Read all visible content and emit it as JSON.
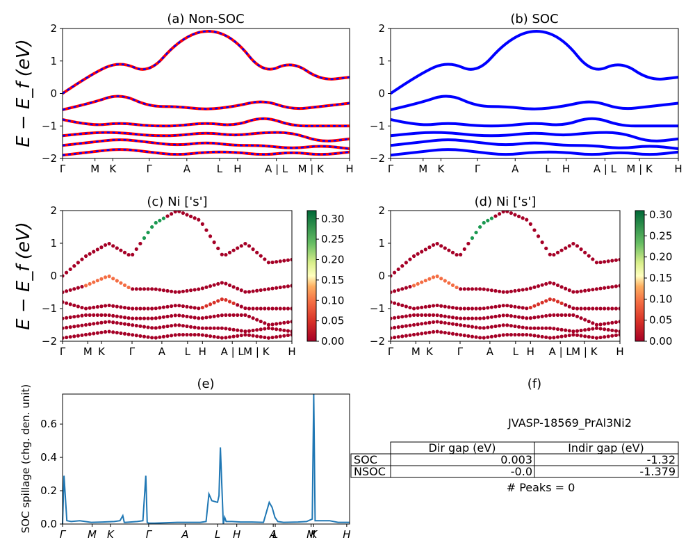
{
  "chart_data": [
    {
      "type": "line",
      "title": "(a) Non-SOC",
      "ylabel": "E − E_f (eV)",
      "ylim": [
        -2,
        2
      ],
      "yticks": [
        "−2",
        "−1",
        "0",
        "1",
        "2"
      ],
      "kpath_labels": [
        "Γ",
        "M",
        "K",
        "Γ",
        "A",
        "L",
        "H",
        "A | L",
        "M | K",
        "H"
      ],
      "series": [
        {
          "color": "#ff0000",
          "style": "solid",
          "x": [
            0,
            0.1,
            0.2,
            0.3,
            0.4,
            0.5,
            0.6,
            0.7,
            0.8,
            0.9,
            1.0
          ],
          "bands": [
            [
              0.0,
              0.6,
              1.0,
              0.6,
              1.6,
              2.0,
              1.7,
              0.6,
              1.0,
              0.4,
              0.5
            ],
            [
              -0.5,
              -0.3,
              0.0,
              -0.4,
              -0.4,
              -0.5,
              -0.4,
              -0.2,
              -0.5,
              -0.4,
              -0.3
            ],
            [
              -0.8,
              -1.0,
              -0.9,
              -1.0,
              -1.0,
              -0.9,
              -1.0,
              -0.7,
              -1.0,
              -1.0,
              -1.0
            ],
            [
              -1.3,
              -1.2,
              -1.2,
              -1.3,
              -1.3,
              -1.2,
              -1.3,
              -1.2,
              -1.2,
              -1.5,
              -1.4
            ],
            [
              -1.6,
              -1.5,
              -1.4,
              -1.5,
              -1.6,
              -1.5,
              -1.6,
              -1.6,
              -1.7,
              -1.6,
              -1.7
            ],
            [
              -1.9,
              -1.8,
              -1.7,
              -1.8,
              -1.9,
              -1.8,
              -1.8,
              -1.9,
              -1.8,
              -1.9,
              -1.8
            ]
          ]
        },
        {
          "color": "#0000ff",
          "style": "dashed",
          "note": "overlay"
        }
      ]
    },
    {
      "type": "line",
      "title": "(b) SOC",
      "ylim": [
        -2,
        2
      ],
      "yticks": [
        "−2",
        "−1",
        "0",
        "1",
        "2"
      ],
      "kpath_labels": [
        "Γ",
        "M",
        "K",
        "Γ",
        "A",
        "L",
        "H",
        "A | L",
        "M | K",
        "H"
      ],
      "series": [
        {
          "color": "#0000ff",
          "style": "solid",
          "x": [
            0,
            0.1,
            0.2,
            0.3,
            0.4,
            0.5,
            0.6,
            0.7,
            0.8,
            0.9,
            1.0
          ],
          "bands": [
            [
              0.0,
              0.6,
              1.0,
              0.6,
              1.6,
              2.0,
              1.7,
              0.6,
              1.0,
              0.4,
              0.5
            ],
            [
              -0.5,
              -0.3,
              0.0,
              -0.4,
              -0.4,
              -0.5,
              -0.4,
              -0.2,
              -0.5,
              -0.4,
              -0.3
            ],
            [
              -0.8,
              -1.0,
              -0.9,
              -1.0,
              -1.0,
              -0.9,
              -1.0,
              -0.7,
              -1.0,
              -1.0,
              -1.0
            ],
            [
              -1.3,
              -1.2,
              -1.2,
              -1.3,
              -1.3,
              -1.2,
              -1.3,
              -1.2,
              -1.2,
              -1.5,
              -1.4
            ],
            [
              -1.6,
              -1.5,
              -1.4,
              -1.5,
              -1.6,
              -1.5,
              -1.6,
              -1.6,
              -1.7,
              -1.6,
              -1.7
            ],
            [
              -1.9,
              -1.8,
              -1.7,
              -1.8,
              -1.9,
              -1.8,
              -1.8,
              -1.9,
              -1.8,
              -1.9,
              -1.8
            ]
          ]
        }
      ]
    },
    {
      "type": "scatter",
      "title": "(c)  Ni ['s']",
      "ylabel": "E − E_f (eV)",
      "ylim": [
        -2,
        2
      ],
      "yticks": [
        "−2",
        "−1",
        "0",
        "1",
        "2"
      ],
      "kpath_labels": [
        "Γ",
        "M",
        "K",
        "Γ",
        "A",
        "L",
        "H",
        "A | L",
        "M | K",
        "H"
      ],
      "colorbar": {
        "colormap": "RdYlGn",
        "ticks": [
          "0.00",
          "0.05",
          "0.10",
          "0.15",
          "0.20",
          "0.25",
          "0.30"
        ],
        "range": [
          0,
          0.32
        ]
      }
    },
    {
      "type": "scatter",
      "title": "(d) Ni ['s']",
      "ylim": [
        -2,
        2
      ],
      "yticks": [
        "−2",
        "−1",
        "0",
        "1",
        "2"
      ],
      "kpath_labels": [
        "Γ",
        "M",
        "K",
        "Γ",
        "A",
        "L",
        "H",
        "A | L",
        "M | K",
        "H"
      ],
      "colorbar": {
        "colormap": "RdYlGn",
        "ticks": [
          "0.00",
          "0.05",
          "0.10",
          "0.15",
          "0.20",
          "0.25",
          "0.30"
        ],
        "range": [
          0,
          0.31
        ]
      }
    },
    {
      "type": "line",
      "title": "(e)",
      "ylabel": "SOC spillage (chg. den. unit)",
      "ylim": [
        0,
        0.78
      ],
      "yticks": [
        "0.0",
        "0.2",
        "0.4",
        "0.6"
      ],
      "kpath_labels": [
        "Γ",
        "M",
        "K",
        "Γ",
        "A",
        "L",
        "H",
        "A",
        "L",
        "M",
        "K",
        "H"
      ],
      "series": [
        {
          "color": "#1f77b4",
          "x": [
            0,
            0.005,
            0.015,
            0.03,
            0.06,
            0.1,
            0.14,
            0.18,
            0.2,
            0.21,
            0.215,
            0.22,
            0.26,
            0.28,
            0.29,
            0.295,
            0.3,
            0.32,
            0.4,
            0.48,
            0.5,
            0.51,
            0.52,
            0.54,
            0.545,
            0.55,
            0.56,
            0.565,
            0.57,
            0.59,
            0.62,
            0.66,
            0.7,
            0.72,
            0.73,
            0.74,
            0.75,
            0.77,
            0.82,
            0.85,
            0.87,
            0.875,
            0.88,
            0.89,
            0.93,
            0.96,
            1.0
          ],
          "values": [
            0.0,
            0.29,
            0.02,
            0.015,
            0.02,
            0.01,
            0.012,
            0.015,
            0.02,
            0.05,
            0.01,
            0.01,
            0.015,
            0.02,
            0.29,
            0.01,
            0.005,
            0.005,
            0.01,
            0.01,
            0.015,
            0.18,
            0.14,
            0.13,
            0.17,
            0.46,
            0.0,
            0.04,
            0.015,
            0.015,
            0.012,
            0.012,
            0.01,
            0.13,
            0.1,
            0.04,
            0.015,
            0.01,
            0.012,
            0.015,
            0.03,
            0.78,
            0.02,
            0.02,
            0.02,
            0.01,
            0.01
          ]
        }
      ]
    }
  ],
  "panel_f": {
    "title": "(f)",
    "material": "JVASP-18569_PrAl3Ni2",
    "table": {
      "headers": [
        "Dir gap (eV)",
        "Indir gap (eV)"
      ],
      "rows": [
        {
          "label": "SOC",
          "dir": "0.003",
          "indir": "-1.32"
        },
        {
          "label": "NSOC",
          "dir": "-0.0",
          "indir": "-1.379"
        }
      ]
    },
    "peaks": "# Peaks = 0"
  }
}
